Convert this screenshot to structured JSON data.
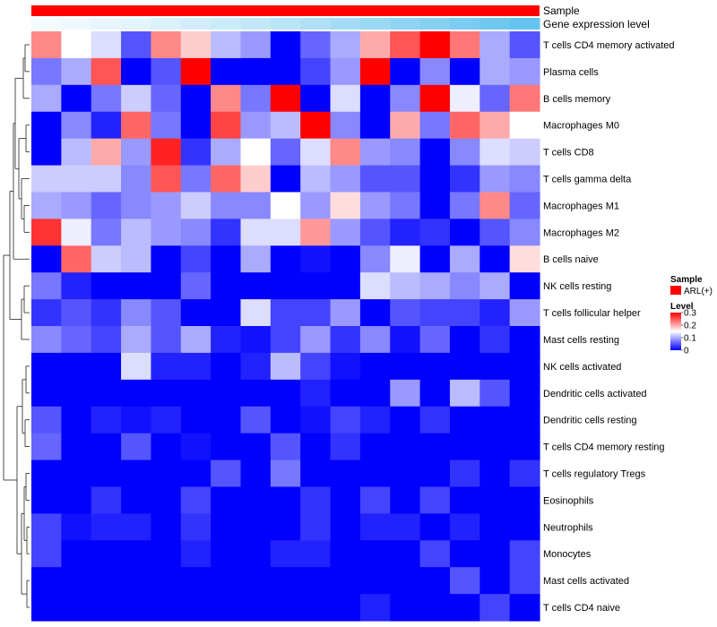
{
  "chart_data": {
    "type": "heatmap",
    "title": "",
    "annotations": [
      {
        "name": "Sample",
        "color": "#ff0000"
      },
      {
        "name": "Gene expression level",
        "colors": [
          "#f4fbfe",
          "#eef8fd",
          "#e8f6fc",
          "#e2f4fc",
          "#dbf1fb",
          "#d3eefa",
          "#cbebf9",
          "#c2e8f8",
          "#b9e4f7",
          "#afe0f6",
          "#a5dcf5",
          "#9bd8f4",
          "#90d4f3",
          "#86d0f2",
          "#7bccf1",
          "#70c8f0",
          "#64c4ee"
        ]
      }
    ],
    "rows": [
      "T cells CD4 memory activated",
      "Plasma cells",
      "B cells memory",
      "Macrophages M0",
      "T cells CD8",
      "T cells gamma delta",
      "Macrophages M1",
      "Macrophages M2",
      "B cells naive",
      "NK cells resting",
      "T cells follicular helper",
      "Mast cells resting",
      "NK cells activated",
      "Dendritic cells activated",
      "Dendritic cells resting",
      "T cells CD4 memory resting",
      "T cells regulatory  Tregs",
      "Eosinophils",
      "Neutrophils",
      "Monocytes",
      "Mast cells activated",
      "T cells CD4 naive"
    ],
    "n_samples": 17,
    "values": [
      [
        0.22,
        0.15,
        0.13,
        0.05,
        0.22,
        0.18,
        0.11,
        0.09,
        0.0,
        0.06,
        0.1,
        0.2,
        0.25,
        0.3,
        0.23,
        0.1,
        0.05
      ],
      [
        0.07,
        0.1,
        0.25,
        0.0,
        0.05,
        0.3,
        0.0,
        0.0,
        0.0,
        0.04,
        0.09,
        0.3,
        0.0,
        0.08,
        0.0,
        0.1,
        0.09
      ],
      [
        0.1,
        0.0,
        0.07,
        0.12,
        0.06,
        0.0,
        0.22,
        0.07,
        0.3,
        0.0,
        0.13,
        0.0,
        0.08,
        0.3,
        0.14,
        0.06,
        0.23
      ],
      [
        0.0,
        0.08,
        0.02,
        0.24,
        0.07,
        0.0,
        0.26,
        0.09,
        0.11,
        0.3,
        0.08,
        0.0,
        0.2,
        0.07,
        0.24,
        0.2,
        0.15
      ],
      [
        0.0,
        0.11,
        0.2,
        0.09,
        0.28,
        0.03,
        0.1,
        0.15,
        0.06,
        0.13,
        0.22,
        0.09,
        0.08,
        0.0,
        0.08,
        0.13,
        0.12
      ],
      [
        0.12,
        0.12,
        0.12,
        0.08,
        0.25,
        0.07,
        0.24,
        0.18,
        0.0,
        0.11,
        0.09,
        0.05,
        0.05,
        0.0,
        0.03,
        0.09,
        0.08
      ],
      [
        0.1,
        0.09,
        0.06,
        0.08,
        0.09,
        0.12,
        0.08,
        0.08,
        0.15,
        0.09,
        0.17,
        0.09,
        0.07,
        0.0,
        0.07,
        0.22,
        0.06
      ],
      [
        0.27,
        0.14,
        0.07,
        0.11,
        0.09,
        0.08,
        0.03,
        0.13,
        0.13,
        0.21,
        0.09,
        0.05,
        0.02,
        0.03,
        0.0,
        0.05,
        0.08
      ],
      [
        0.0,
        0.24,
        0.12,
        0.11,
        0.0,
        0.04,
        0.0,
        0.1,
        0.0,
        0.01,
        0.0,
        0.08,
        0.14,
        0.0,
        0.1,
        0.0,
        0.17
      ],
      [
        0.07,
        0.02,
        0.0,
        0.0,
        0.0,
        0.06,
        0.0,
        0.0,
        0.0,
        0.0,
        0.0,
        0.13,
        0.11,
        0.1,
        0.08,
        0.1,
        0.0
      ],
      [
        0.03,
        0.05,
        0.03,
        0.08,
        0.05,
        0.0,
        0.0,
        0.13,
        0.04,
        0.04,
        0.09,
        0.0,
        0.05,
        0.04,
        0.04,
        0.02,
        0.09
      ],
      [
        0.08,
        0.06,
        0.04,
        0.1,
        0.05,
        0.1,
        0.02,
        0.01,
        0.04,
        0.09,
        0.03,
        0.08,
        0.01,
        0.06,
        0.0,
        0.03,
        0.0
      ],
      [
        0.0,
        0.0,
        0.0,
        0.13,
        0.02,
        0.02,
        0.0,
        0.02,
        0.11,
        0.04,
        0.01,
        0.0,
        0.0,
        0.0,
        0.0,
        0.0,
        0.0
      ],
      [
        0.0,
        0.0,
        0.0,
        0.0,
        0.0,
        0.0,
        0.0,
        0.0,
        0.0,
        0.02,
        0.0,
        0.0,
        0.09,
        0.0,
        0.11,
        0.05,
        0.0
      ],
      [
        0.05,
        0.0,
        0.02,
        0.01,
        0.02,
        0.0,
        0.0,
        0.05,
        0.0,
        0.01,
        0.04,
        0.02,
        0.0,
        0.03,
        0.0,
        0.0,
        0.0
      ],
      [
        0.06,
        0.0,
        0.0,
        0.05,
        0.0,
        0.01,
        0.0,
        0.0,
        0.05,
        0.0,
        0.03,
        0.0,
        0.0,
        0.0,
        0.0,
        0.0,
        0.0
      ],
      [
        0.0,
        0.0,
        0.0,
        0.0,
        0.0,
        0.0,
        0.05,
        0.0,
        0.07,
        0.0,
        0.0,
        0.0,
        0.0,
        0.0,
        0.03,
        0.0,
        0.03
      ],
      [
        0.0,
        0.0,
        0.03,
        0.0,
        0.0,
        0.04,
        0.0,
        0.0,
        0.0,
        0.03,
        0.0,
        0.04,
        0.0,
        0.04,
        0.0,
        0.0,
        0.0
      ],
      [
        0.04,
        0.01,
        0.02,
        0.02,
        0.0,
        0.03,
        0.0,
        0.0,
        0.0,
        0.03,
        0.0,
        0.02,
        0.02,
        0.0,
        0.02,
        0.0,
        0.0
      ],
      [
        0.04,
        0.0,
        0.0,
        0.0,
        0.0,
        0.02,
        0.0,
        0.0,
        0.02,
        0.02,
        0.0,
        0.0,
        0.0,
        0.04,
        0.0,
        0.0,
        0.04
      ],
      [
        0.0,
        0.0,
        0.0,
        0.0,
        0.0,
        0.0,
        0.0,
        0.0,
        0.0,
        0.0,
        0.0,
        0.0,
        0.0,
        0.0,
        0.05,
        0.0,
        0.04
      ],
      [
        0.0,
        0.0,
        0.0,
        0.0,
        0.0,
        0.0,
        0.0,
        0.0,
        0.0,
        0.0,
        0.0,
        0.02,
        0.0,
        0.0,
        0.0,
        0.04,
        0.0
      ]
    ],
    "color_scale": {
      "min": 0,
      "max": 0.3,
      "low": "#0000ff",
      "mid": "#ffffff",
      "high": "#ff0000",
      "mid_value": 0.15
    },
    "legend": {
      "sample_title": "Sample",
      "sample_entry": "ARL(+)",
      "level_title": "Level",
      "level_ticks": [
        0.3,
        0.2,
        0.1,
        0
      ],
      "placement": "right"
    },
    "dendrogram": {
      "side": "left",
      "merge_order": [
        [
          19,
          20
        ],
        [
          18,
          19
        ],
        [
          17,
          18
        ],
        [
          15,
          16
        ],
        [
          13,
          14
        ],
        [
          12,
          13
        ],
        [
          9,
          10
        ],
        [
          6,
          7
        ],
        [
          3,
          4
        ],
        [
          1,
          2
        ],
        [
          0,
          1
        ]
      ]
    }
  }
}
